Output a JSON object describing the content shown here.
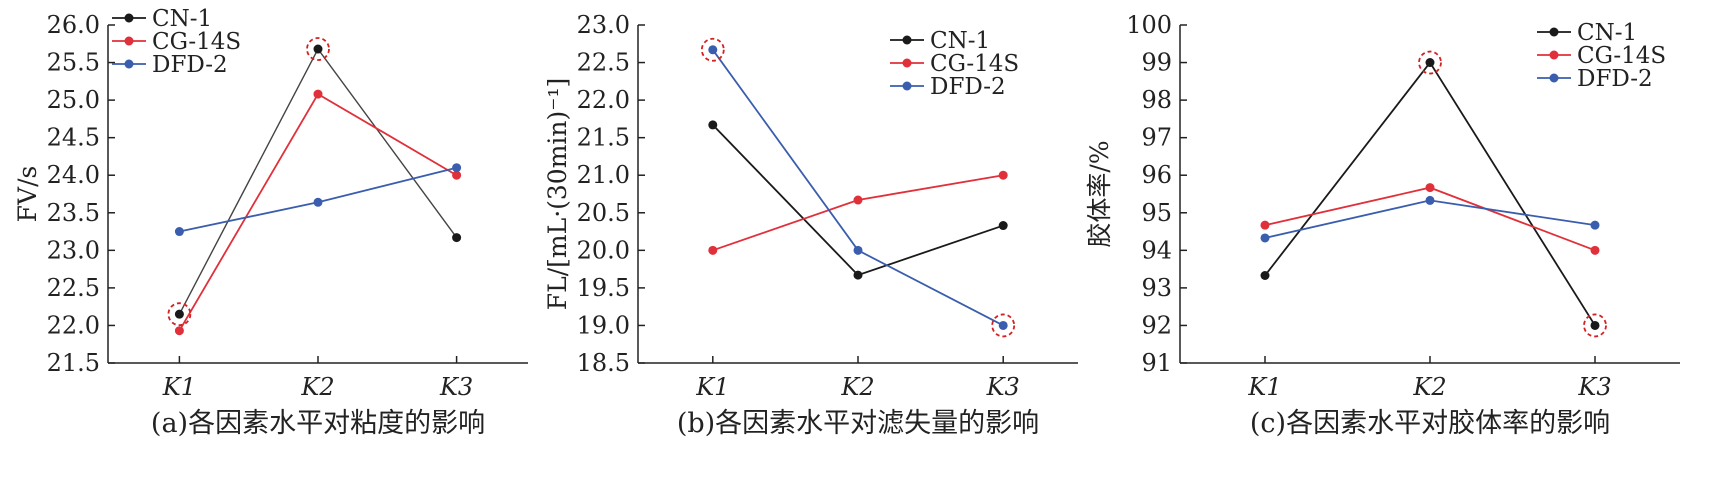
{
  "colors": {
    "CN-1": "#1a1a1a",
    "CG-14S": "#e0303a",
    "DFD-2": "#3a5dae",
    "highlight": "#d42020"
  },
  "chart_data": [
    {
      "type": "line",
      "title": "",
      "caption": "(a)各因素水平对粘度的影响",
      "xlabel": "",
      "ylabel": "FV/s",
      "categories": [
        "K1",
        "K2",
        "K3"
      ],
      "ylim": [
        21.5,
        26.0
      ],
      "yticks": [
        "21.5",
        "22.0",
        "22.5",
        "23.0",
        "23.5",
        "24.0",
        "24.5",
        "25.0",
        "25.5",
        "26.0"
      ],
      "legend_position": "top-left",
      "series": [
        {
          "name": "CN-1",
          "values": [
            22.15,
            25.68,
            23.17
          ]
        },
        {
          "name": "CG-14S",
          "values": [
            21.93,
            25.08,
            24.0
          ]
        },
        {
          "name": "DFD-2",
          "values": [
            23.25,
            23.64,
            24.1
          ]
        }
      ],
      "highlighted": [
        {
          "series": "CN-1",
          "category": "K1"
        },
        {
          "series": "CN-1",
          "category": "K2"
        }
      ]
    },
    {
      "type": "line",
      "title": "",
      "caption": "(b)各因素水平对滤失量的影响",
      "xlabel": "",
      "ylabel": "FL/[mL·(30min)⁻¹]",
      "categories": [
        "K1",
        "K2",
        "K3"
      ],
      "ylim": [
        18.5,
        23.0
      ],
      "yticks": [
        "18.5",
        "19.0",
        "19.5",
        "20.0",
        "20.5",
        "21.0",
        "21.5",
        "22.0",
        "22.5",
        "23.0"
      ],
      "legend_position": "top-right",
      "series": [
        {
          "name": "CN-1",
          "values": [
            21.67,
            19.67,
            20.33
          ]
        },
        {
          "name": "CG-14S",
          "values": [
            20.0,
            20.67,
            21.0
          ]
        },
        {
          "name": "DFD-2",
          "values": [
            22.67,
            20.0,
            19.0
          ]
        }
      ],
      "highlighted": [
        {
          "series": "DFD-2",
          "category": "K1"
        },
        {
          "series": "DFD-2",
          "category": "K3"
        }
      ]
    },
    {
      "type": "line",
      "title": "",
      "caption": "(c)各因素水平对胶体率的影响",
      "xlabel": "",
      "ylabel": "胶体率/%",
      "categories": [
        "K1",
        "K2",
        "K3"
      ],
      "ylim": [
        91,
        100
      ],
      "yticks": [
        "91",
        "92",
        "93",
        "94",
        "95",
        "96",
        "97",
        "98",
        "99",
        "100"
      ],
      "legend_position": "top-right",
      "series": [
        {
          "name": "CN-1",
          "values": [
            93.33,
            99.0,
            92.0
          ]
        },
        {
          "name": "CG-14S",
          "values": [
            94.67,
            95.67,
            94.0
          ]
        },
        {
          "name": "DFD-2",
          "values": [
            94.33,
            95.33,
            94.67
          ]
        }
      ],
      "highlighted": [
        {
          "series": "CN-1",
          "category": "K2"
        },
        {
          "series": "CN-1",
          "category": "K3"
        }
      ]
    }
  ]
}
